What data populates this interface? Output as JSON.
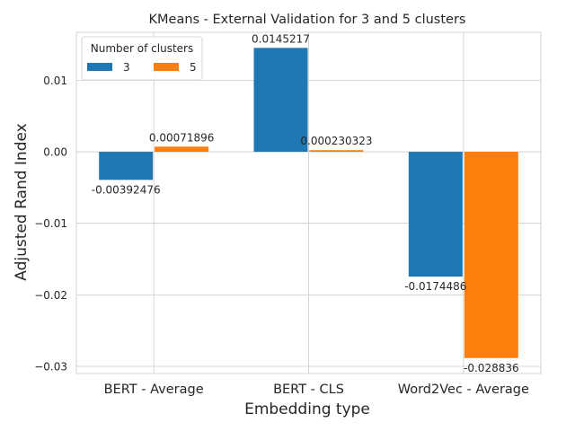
{
  "chart_data": {
    "type": "bar",
    "title": "KMeans - External Validation for 3 and 5 clusters",
    "xlabel": "Embedding type",
    "ylabel": "Adjusted Rand Index",
    "categories": [
      "BERT - Average",
      "BERT - CLS",
      "Word2Vec - Average"
    ],
    "series": [
      {
        "name": "3",
        "color": "#1f77b4",
        "values": [
          -0.00392476,
          0.0145217,
          -0.0174486
        ],
        "labels": [
          "-0.00392476",
          "0.0145217",
          "-0.0174486"
        ]
      },
      {
        "name": "5",
        "color": "#ff7f0e",
        "values": [
          0.00071896,
          0.000230323,
          -0.028836
        ],
        "labels": [
          "0.00071896",
          "0.000230323",
          "-0.028836"
        ]
      }
    ],
    "ylim": [
      -0.031,
      0.0167
    ],
    "yticks": [
      0.01,
      0.0,
      -0.01,
      -0.02,
      -0.03
    ],
    "ytick_labels": [
      "0.01",
      "0.00",
      "−0.01",
      "−0.02",
      "−0.03"
    ],
    "grid": true,
    "legend": {
      "title": "Number of clusters",
      "position": "top-left"
    }
  }
}
